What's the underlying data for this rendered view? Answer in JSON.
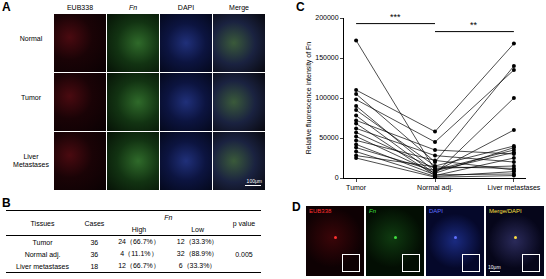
{
  "panel_labels": [
    "A",
    "B",
    "C",
    "D"
  ],
  "A": {
    "columns": [
      "EUB338",
      "Fn",
      "DAPI",
      "Merge"
    ],
    "rows": [
      "Normal",
      "Tumor",
      "Liver Metastases"
    ],
    "scale_bar": "100μm"
  },
  "B": {
    "header": [
      "Tissues",
      "Cases",
      "Fn",
      "p value"
    ],
    "subheader": [
      "High",
      "Low"
    ],
    "rows": [
      [
        "Tumor",
        36,
        "24（66.7%）",
        "12（33.3%）"
      ],
      [
        "Normal adj.",
        36,
        "4（11.1%）",
        "32（88.9%）"
      ],
      [
        "Liver metastases",
        18,
        "12（66.7%）",
        "6（33.3%）"
      ]
    ],
    "p_value": 0.005
  },
  "chart_data": {
    "type": "line",
    "y_label": "Relative fluorescence intensity of Fn",
    "categories": [
      "Tumor",
      "Normal adj.",
      "Liver metastases"
    ],
    "color": "#000000",
    "marker": "circle",
    "series": [
      {
        "values": [
          172000,
          10000,
          35000
        ]
      },
      {
        "values": [
          110000,
          58000,
          168000
        ]
      },
      {
        "values": [
          105000,
          20000,
          140000
        ]
      },
      {
        "values": [
          98000,
          45000,
          135000
        ]
      },
      {
        "values": [
          90000,
          8000,
          60000
        ]
      },
      {
        "values": [
          85000,
          15000,
          40000
        ]
      },
      {
        "values": [
          78000,
          5000,
          100000
        ]
      },
      {
        "values": [
          72000,
          35000,
          30000
        ]
      },
      {
        "values": [
          68000,
          3000,
          25000
        ]
      },
      {
        "values": [
          62000,
          28000,
          20000
        ]
      },
      {
        "values": [
          57000,
          12000,
          15000
        ]
      },
      {
        "values": [
          52000,
          6000,
          38000
        ]
      },
      {
        "values": [
          47000,
          22000,
          10000
        ]
      },
      {
        "values": [
          42000,
          4000,
          5000
        ]
      },
      {
        "values": [
          38000,
          9000,
          32000
        ]
      },
      {
        "values": [
          33000,
          2000,
          8000
        ]
      },
      {
        "values": [
          28000,
          14000,
          12000
        ]
      },
      {
        "values": [
          25000,
          1000,
          3000
        ]
      }
    ],
    "ylim": [
      0,
      200000
    ],
    "yticks": [
      0,
      50000,
      100000,
      150000,
      200000
    ],
    "grid": false,
    "annotations": [
      {
        "text": "***",
        "from": "Tumor",
        "to": "Normal adj."
      },
      {
        "text": "**",
        "from": "Normal adj.",
        "to": "Liver metastases"
      }
    ]
  },
  "D": {
    "labels": [
      "EUB338",
      "Fn",
      "DAPI",
      "Merge/DAPI"
    ],
    "scale_bar": "10μm"
  }
}
